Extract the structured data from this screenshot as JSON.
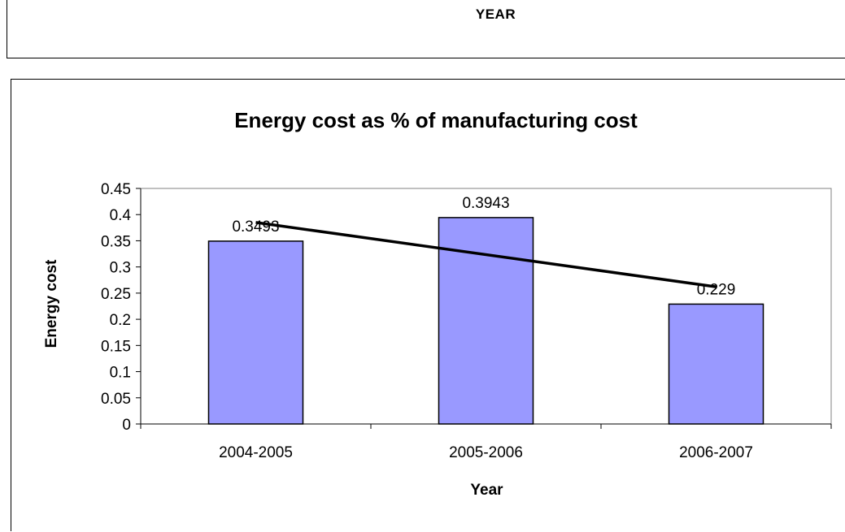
{
  "header": {
    "label": "YEAR"
  },
  "chart_data": {
    "type": "bar",
    "title": "Energy cost as % of manufacturing cost",
    "xlabel": "Year",
    "ylabel": "Energy cost",
    "categories": [
      "2004-2005",
      "2005-2006",
      "2006-2007"
    ],
    "values": [
      0.3493,
      0.3943,
      0.229
    ],
    "data_labels": [
      "0.3493",
      "0.3943",
      "0.229"
    ],
    "ylim": [
      0,
      0.45
    ],
    "yticks": [
      0,
      0.05,
      0.1,
      0.15,
      0.2,
      0.25,
      0.3,
      0.35,
      0.4,
      0.45
    ],
    "ytick_labels": [
      "0",
      "0.05",
      "0.1",
      "0.15",
      "0.2",
      "0.25",
      "0.3",
      "0.35",
      "0.4",
      "0.45"
    ],
    "trendline": {
      "type": "linear",
      "start": 0.385,
      "end": 0.262
    },
    "colors": {
      "bar_fill": "#9999ff",
      "bar_stroke": "#000000",
      "trendline": "#000000",
      "plot_border": "#808080"
    },
    "grid": false,
    "legend": false
  }
}
